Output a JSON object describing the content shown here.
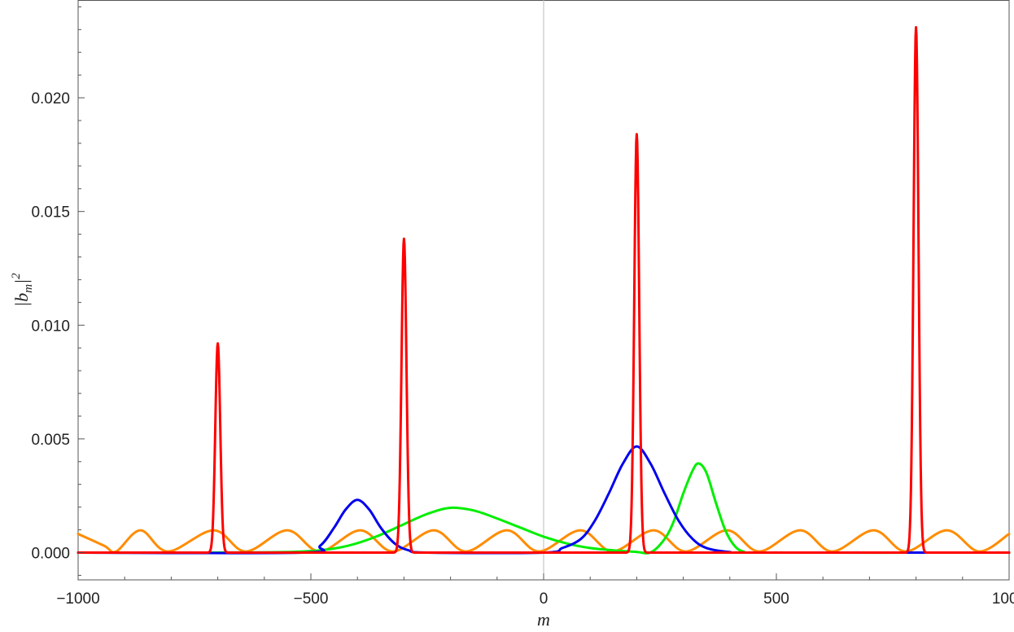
{
  "chart_data": {
    "type": "line",
    "title": "",
    "xlabel": "m",
    "ylabel": "|b_m|^2",
    "xlim": [
      -1000,
      1000
    ],
    "ylim": [
      -0.0012,
      0.0243
    ],
    "x_ticks": [
      -1000,
      -500,
      0,
      500,
      1000
    ],
    "x_tick_labels": [
      "-1000",
      "-500",
      "0",
      "500",
      "1000"
    ],
    "y_ticks": [
      0.0,
      0.005,
      0.01,
      0.015,
      0.02
    ],
    "y_tick_labels": [
      "0.000",
      "0.005",
      "0.010",
      "0.015",
      "0.020"
    ],
    "grid": false,
    "frame": true,
    "x_zero_line": true,
    "series": [
      {
        "color": "#ff8c00",
        "description": "periodic oscillation, period about 157, peaks ~0.00098",
        "points": [
          [
            -1000,
            0.00082
          ],
          [
            -944,
            0.0003
          ],
          [
            -918,
            5e-05
          ],
          [
            -866,
            0.00098
          ],
          [
            -807,
            5e-05
          ],
          [
            -709,
            0.00098
          ],
          [
            -640,
            5e-05
          ],
          [
            -551,
            0.00098
          ],
          [
            -481,
            5e-05
          ],
          [
            -394,
            0.00098
          ],
          [
            -324,
            5e-05
          ],
          [
            -236,
            0.00098
          ],
          [
            -167,
            5e-05
          ],
          [
            -79,
            0.00098
          ],
          [
            -10,
            5e-05
          ],
          [
            79,
            0.00098
          ],
          [
            148,
            5e-05
          ],
          [
            236,
            0.00098
          ],
          [
            305,
            5e-05
          ],
          [
            394,
            0.00098
          ],
          [
            463,
            5e-05
          ],
          [
            551,
            0.00098
          ],
          [
            620,
            5e-05
          ],
          [
            709,
            0.00098
          ],
          [
            778,
            5e-05
          ],
          [
            866,
            0.00098
          ],
          [
            935,
            5e-05
          ],
          [
            1000,
            0.00082
          ]
        ]
      },
      {
        "color": "#00ee00",
        "description": "broad peak near -200 and narrow peak near 333",
        "points": [
          [
            -720,
            0
          ],
          [
            -560,
            2e-05
          ],
          [
            -480,
            0.0001
          ],
          [
            -420,
            0.0003
          ],
          [
            -360,
            0.0007
          ],
          [
            -300,
            0.00125
          ],
          [
            -250,
            0.0017
          ],
          [
            -200,
            0.00197
          ],
          [
            -150,
            0.00185
          ],
          [
            -100,
            0.0015
          ],
          [
            -50,
            0.0011
          ],
          [
            0,
            0.0007
          ],
          [
            50,
            0.0004
          ],
          [
            100,
            0.0002
          ],
          [
            150,
            0.0001
          ],
          [
            200,
            3e-05
          ],
          [
            230,
            1e-05
          ],
          [
            260,
            0.0006
          ],
          [
            280,
            0.0014
          ],
          [
            300,
            0.0026
          ],
          [
            320,
            0.0036
          ],
          [
            333,
            0.00392
          ],
          [
            350,
            0.0035
          ],
          [
            370,
            0.0022
          ],
          [
            390,
            0.001
          ],
          [
            410,
            0.0003
          ],
          [
            430,
            4e-05
          ],
          [
            460,
            0
          ],
          [
            1000,
            0
          ]
        ]
      },
      {
        "color": "#0000ee",
        "description": "peaks near -400 and 200",
        "points": [
          [
            -1000,
            0
          ],
          [
            -520,
            0
          ],
          [
            -480,
            0.0003
          ],
          [
            -450,
            0.0011
          ],
          [
            -425,
            0.0019
          ],
          [
            -400,
            0.00232
          ],
          [
            -375,
            0.0019
          ],
          [
            -350,
            0.0011
          ],
          [
            -320,
            0.0004
          ],
          [
            -290,
            0.0001
          ],
          [
            -250,
            0
          ],
          [
            0,
            0
          ],
          [
            40,
            0.0002
          ],
          [
            80,
            0.0006
          ],
          [
            110,
            0.0014
          ],
          [
            140,
            0.0026
          ],
          [
            170,
            0.0039
          ],
          [
            200,
            0.00467
          ],
          [
            230,
            0.0039
          ],
          [
            260,
            0.0026
          ],
          [
            290,
            0.0014
          ],
          [
            320,
            0.0006
          ],
          [
            350,
            0.0002
          ],
          [
            400,
            2e-05
          ],
          [
            450,
            0
          ],
          [
            1000,
            0
          ]
        ]
      },
      {
        "color": "#ff0000",
        "description": "narrow spikes at -700, -300, 200, 800",
        "peaks": [
          {
            "center": -700,
            "height": 0.0092,
            "width": 7.5
          },
          {
            "center": -300,
            "height": 0.0138,
            "width": 7.5
          },
          {
            "center": 200,
            "height": 0.0184,
            "width": 7.5
          },
          {
            "center": 800,
            "height": 0.0231,
            "width": 7.5
          }
        ]
      }
    ]
  }
}
